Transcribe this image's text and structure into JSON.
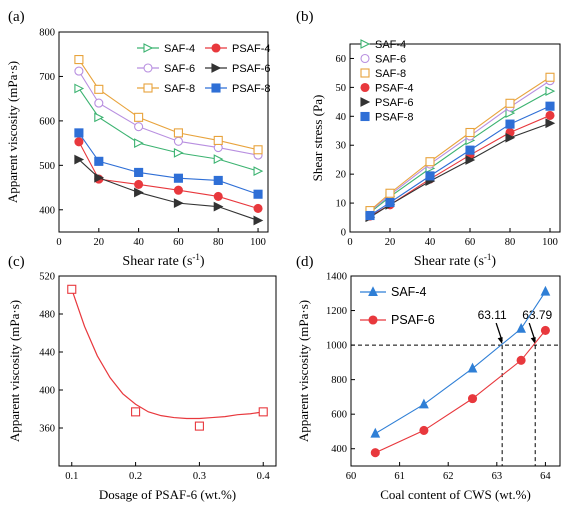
{
  "panel_labels": [
    "(a)",
    "(b)",
    "(c)",
    "(d)"
  ],
  "chart_data": [
    {
      "panel": "(a)",
      "type": "line",
      "xlabel": "Shear  rate (s",
      "xlabel_sup": "-1",
      "xlabel_end": ")",
      "ylabel": "Apparent viscosity (mPa·s)",
      "xlim": [
        0,
        105
      ],
      "ylim": [
        350,
        800
      ],
      "xticks": [
        0,
        20,
        40,
        60,
        80,
        100
      ],
      "yticks": [
        400,
        500,
        600,
        700,
        800
      ],
      "legend_position": "top-right",
      "series": [
        {
          "name": "SAF-4",
          "color": "#3cb371",
          "marker": "triangle-right-open",
          "x": [
            10,
            20,
            40,
            60,
            80,
            100
          ],
          "y": [
            673,
            608,
            550,
            528,
            514,
            487
          ]
        },
        {
          "name": "PSAF-4",
          "color": "#e8383d",
          "marker": "circle-filled",
          "x": [
            10,
            20,
            40,
            60,
            80,
            100
          ],
          "y": [
            553,
            469,
            457,
            444,
            430,
            403
          ]
        },
        {
          "name": "SAF-6",
          "color": "#b88fe0",
          "marker": "circle-open",
          "x": [
            10,
            20,
            40,
            60,
            80,
            100
          ],
          "y": [
            712,
            640,
            587,
            554,
            540,
            523
          ]
        },
        {
          "name": "PSAF-6",
          "color": "#333333",
          "marker": "triangle-right-filled",
          "x": [
            10,
            20,
            40,
            60,
            80,
            100
          ],
          "y": [
            513,
            472,
            439,
            415,
            407,
            376
          ]
        },
        {
          "name": "SAF-8",
          "color": "#e8a33c",
          "marker": "square-open",
          "x": [
            10,
            20,
            40,
            60,
            80,
            100
          ],
          "y": [
            738,
            671,
            608,
            573,
            556,
            535
          ]
        },
        {
          "name": "PSAF-8",
          "color": "#2f6fd6",
          "marker": "square-filled",
          "x": [
            10,
            20,
            40,
            60,
            80,
            100
          ],
          "y": [
            573,
            509,
            484,
            471,
            466,
            435
          ]
        }
      ]
    },
    {
      "panel": "(b)",
      "type": "line",
      "xlabel": "Shear  rate (s",
      "xlabel_sup": "-1",
      "xlabel_end": ")",
      "ylabel": "Shear stress (Pa)",
      "xlim": [
        0,
        105
      ],
      "ylim": [
        0,
        65
      ],
      "xticks": [
        0,
        20,
        40,
        60,
        80,
        100
      ],
      "yticks": [
        0,
        10,
        20,
        30,
        40,
        50,
        60
      ],
      "legend_position": "top-left",
      "series": [
        {
          "name": "SAF-4",
          "color": "#3cb371",
          "marker": "triangle-right-open",
          "x": [
            10,
            20,
            40,
            60,
            80,
            100
          ],
          "y": [
            6.7,
            12.2,
            22.0,
            31.7,
            41.1,
            48.7
          ]
        },
        {
          "name": "SAF-6",
          "color": "#b88fe0",
          "marker": "circle-open",
          "x": [
            10,
            20,
            40,
            60,
            80,
            100
          ],
          "y": [
            7.1,
            12.8,
            23.5,
            33.2,
            43.2,
            52.3
          ]
        },
        {
          "name": "SAF-8",
          "color": "#e8a33c",
          "marker": "square-open",
          "x": [
            10,
            20,
            40,
            60,
            80,
            100
          ],
          "y": [
            7.4,
            13.4,
            24.3,
            34.4,
            44.5,
            53.5
          ]
        },
        {
          "name": "PSAF-4",
          "color": "#e8383d",
          "marker": "circle-filled",
          "x": [
            10,
            20,
            40,
            60,
            80,
            100
          ],
          "y": [
            5.5,
            9.4,
            18.3,
            26.6,
            34.4,
            40.3
          ]
        },
        {
          "name": "PSAF-6",
          "color": "#333333",
          "marker": "triangle-right-filled",
          "x": [
            10,
            20,
            40,
            60,
            80,
            100
          ],
          "y": [
            5.1,
            9.4,
            17.6,
            24.9,
            32.6,
            37.6
          ]
        },
        {
          "name": "PSAF-8",
          "color": "#2f6fd6",
          "marker": "square-filled",
          "x": [
            10,
            20,
            40,
            60,
            80,
            100
          ],
          "y": [
            5.7,
            10.2,
            19.4,
            28.3,
            37.3,
            43.5
          ]
        }
      ]
    },
    {
      "panel": "(c)",
      "type": "scatter",
      "xlabel": "Dosage of PSAF-6 (wt.%)",
      "ylabel": "Apparent  viscosity  (mPa·s)",
      "xlim": [
        0.08,
        0.42
      ],
      "ylim": [
        320,
        520
      ],
      "xticks": [
        0.1,
        0.2,
        0.3,
        0.4
      ],
      "xtick_labels": [
        "0.1",
        "0.2",
        "0.3",
        "0.4"
      ],
      "yticks": [
        360,
        400,
        440,
        480,
        520
      ],
      "series": [
        {
          "name": "",
          "color": "#e8383d",
          "marker": "square-open",
          "x": [
            0.1,
            0.2,
            0.3,
            0.4
          ],
          "y": [
            506,
            377,
            362,
            377
          ]
        }
      ],
      "fit_curve": {
        "color": "#e8383d",
        "x": [
          0.1,
          0.12,
          0.14,
          0.16,
          0.18,
          0.2,
          0.22,
          0.24,
          0.26,
          0.28,
          0.3,
          0.32,
          0.34,
          0.36,
          0.38,
          0.4
        ],
        "y": [
          506,
          467,
          436,
          413,
          396,
          385,
          377,
          373,
          371,
          370,
          370,
          371,
          372,
          374,
          375,
          377
        ]
      }
    },
    {
      "panel": "(d)",
      "type": "line",
      "xlabel": "Coal content of CWS (wt.%)",
      "ylabel": "Apparent viscosity (mPa·s)",
      "xlim": [
        60,
        64.3
      ],
      "ylim": [
        300,
        1400
      ],
      "xticks": [
        60,
        61,
        62,
        63,
        64
      ],
      "yticks": [
        400,
        600,
        800,
        1000,
        1200,
        1400
      ],
      "legend_position": "top-left",
      "reference_y": 1000,
      "annotations": [
        {
          "text": "63.11",
          "x": 63.11
        },
        {
          "text": "63.79",
          "x": 63.79
        }
      ],
      "series": [
        {
          "name": "SAF-4",
          "color": "#2f7fd6",
          "marker": "triangle-filled",
          "x": [
            60.5,
            61.5,
            62.5,
            63.5,
            64
          ],
          "y": [
            488,
            657,
            865,
            1095,
            1310
          ]
        },
        {
          "name": "PSAF-6",
          "color": "#e8383d",
          "marker": "circle-filled",
          "x": [
            60.5,
            61.5,
            62.5,
            63.5,
            64
          ],
          "y": [
            377,
            506,
            690,
            912,
            1085
          ]
        }
      ]
    }
  ]
}
